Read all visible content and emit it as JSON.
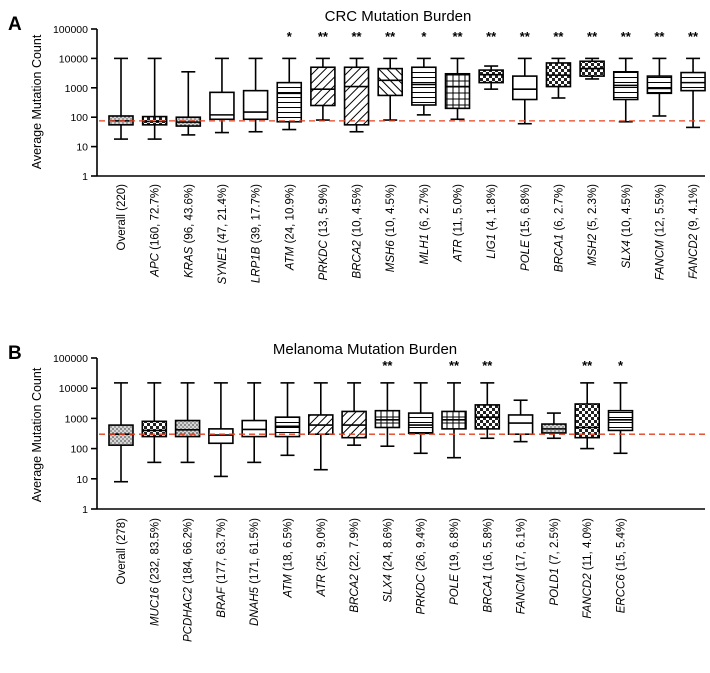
{
  "chart_data": [
    {
      "type": "box",
      "panel_label": "A",
      "title": "CRC Mutation Burden",
      "ylabel": "Average Mutation Count",
      "yscale": "log",
      "ylim": [
        1,
        100000
      ],
      "yticks": [
        "1",
        "10",
        "100",
        "1000",
        "10000",
        "100000"
      ],
      "threshold": 75,
      "categories": [
        {
          "gene": "Overall",
          "detail": "(220)",
          "italic": false,
          "pattern": "dots",
          "sig": "",
          "stats": {
            "min": 18,
            "q1": 55,
            "median": 75,
            "q3": 110,
            "max": 10000
          }
        },
        {
          "gene": "APC",
          "detail": "(160, 72.7%)",
          "italic": true,
          "pattern": "checker",
          "sig": "",
          "stats": {
            "min": 18,
            "q1": 55,
            "median": 72,
            "q3": 105,
            "max": 10000
          }
        },
        {
          "gene": "KRAS",
          "detail": "(96, 43.6%)",
          "italic": true,
          "pattern": "dots",
          "sig": "",
          "stats": {
            "min": 25,
            "q1": 50,
            "median": 68,
            "q3": 100,
            "max": 3500
          }
        },
        {
          "gene": "SYNE1",
          "detail": "(47, 21.4%)",
          "italic": true,
          "pattern": "none",
          "sig": "",
          "stats": {
            "min": 30,
            "q1": 85,
            "median": 120,
            "q3": 700,
            "max": 10000
          }
        },
        {
          "gene": "LRP1B",
          "detail": "(39, 17.7%)",
          "italic": true,
          "pattern": "none",
          "sig": "",
          "stats": {
            "min": 32,
            "q1": 85,
            "median": 150,
            "q3": 800,
            "max": 10000
          }
        },
        {
          "gene": "ATM",
          "detail": "(24, 10.9%)",
          "italic": true,
          "pattern": "hlines",
          "sig": "*",
          "stats": {
            "min": 38,
            "q1": 70,
            "median": 650,
            "q3": 1500,
            "max": 10000
          }
        },
        {
          "gene": "PRKDC",
          "detail": "(13, 5.9%)",
          "italic": true,
          "pattern": "diag-up",
          "sig": "**",
          "stats": {
            "min": 80,
            "q1": 250,
            "median": 900,
            "q3": 5000,
            "max": 10000
          }
        },
        {
          "gene": "BRCA2",
          "detail": "(10, 4.5%)",
          "italic": true,
          "pattern": "diag-up",
          "sig": "**",
          "stats": {
            "min": 32,
            "q1": 55,
            "median": 1100,
            "q3": 5000,
            "max": 10000
          }
        },
        {
          "gene": "MSH6",
          "detail": "(10, 4.5%)",
          "italic": true,
          "pattern": "diag-down",
          "sig": "**",
          "stats": {
            "min": 80,
            "q1": 550,
            "median": 1800,
            "q3": 4500,
            "max": 10000
          }
        },
        {
          "gene": "MLH1",
          "detail": "(6, 2.7%)",
          "italic": true,
          "pattern": "hlines",
          "sig": "*",
          "stats": {
            "min": 120,
            "q1": 260,
            "median": 1300,
            "q3": 5000,
            "max": 10000
          }
        },
        {
          "gene": "ATR",
          "detail": "(11, 5.0%)",
          "italic": true,
          "pattern": "grid",
          "sig": "**",
          "stats": {
            "min": 85,
            "q1": 200,
            "median": 1100,
            "q3": 3000,
            "max": 10000
          }
        },
        {
          "gene": "LIG1",
          "detail": "(4, 1.8%)",
          "italic": true,
          "pattern": "checker",
          "sig": "**",
          "stats": {
            "min": 900,
            "q1": 1500,
            "median": 2800,
            "q3": 4000,
            "max": 5500
          }
        },
        {
          "gene": "POLE",
          "detail": "(15, 6.8%)",
          "italic": true,
          "pattern": "none",
          "sig": "**",
          "stats": {
            "min": 60,
            "q1": 400,
            "median": 900,
            "q3": 2500,
            "max": 10000
          }
        },
        {
          "gene": "BRCA1",
          "detail": "(6, 2.7%)",
          "italic": true,
          "pattern": "checker",
          "sig": "**",
          "stats": {
            "min": 450,
            "q1": 1100,
            "median": 2700,
            "q3": 7000,
            "max": 10000
          }
        },
        {
          "gene": "MSH2",
          "detail": "(5, 2.3%)",
          "italic": true,
          "pattern": "checker",
          "sig": "**",
          "stats": {
            "min": 2000,
            "q1": 2500,
            "median": 4500,
            "q3": 8000,
            "max": 10000
          }
        },
        {
          "gene": "SLX4",
          "detail": "(10, 4.5%)",
          "italic": true,
          "pattern": "hlines",
          "sig": "**",
          "stats": {
            "min": 70,
            "q1": 400,
            "median": 1200,
            "q3": 3500,
            "max": 10000
          }
        },
        {
          "gene": "FANCM",
          "detail": "(12, 5.5%)",
          "italic": true,
          "pattern": "hlines",
          "sig": "**",
          "stats": {
            "min": 110,
            "q1": 650,
            "median": 950,
            "q3": 2500,
            "max": 10000
          }
        },
        {
          "gene": "FANCD2",
          "detail": "(9, 4.1%)",
          "italic": true,
          "pattern": "hlines",
          "sig": "**",
          "stats": {
            "min": 45,
            "q1": 800,
            "median": 1500,
            "q3": 3300,
            "max": 10000
          }
        }
      ]
    },
    {
      "type": "box",
      "panel_label": "B",
      "title": "Melanoma Mutation Burden",
      "ylabel": "Average Mutation Count",
      "yscale": "log",
      "ylim": [
        1,
        100000
      ],
      "yticks": [
        "1",
        "10",
        "100",
        "1000",
        "10000",
        "100000"
      ],
      "threshold": 300,
      "categories": [
        {
          "gene": "Overall",
          "detail": "(278)",
          "italic": false,
          "pattern": "dots",
          "sig": "",
          "stats": {
            "min": 8,
            "q1": 130,
            "median": 300,
            "q3": 600,
            "max": 15000
          }
        },
        {
          "gene": "MUC16",
          "detail": "(232, 83.5%)",
          "italic": true,
          "pattern": "checker",
          "sig": "",
          "stats": {
            "min": 35,
            "q1": 250,
            "median": 400,
            "q3": 800,
            "max": 15000
          }
        },
        {
          "gene": "PCDHAC2",
          "detail": "(184, 66.2%)",
          "italic": true,
          "pattern": "dots",
          "sig": "",
          "stats": {
            "min": 35,
            "q1": 250,
            "median": 420,
            "q3": 850,
            "max": 15000
          }
        },
        {
          "gene": "BRAF",
          "detail": "(177, 63.7%)",
          "italic": true,
          "pattern": "none",
          "sig": "",
          "stats": {
            "min": 12,
            "q1": 150,
            "median": 280,
            "q3": 450,
            "max": 15000
          }
        },
        {
          "gene": "DNAH5",
          "detail": "(171, 61.5%)",
          "italic": true,
          "pattern": "none",
          "sig": "",
          "stats": {
            "min": 35,
            "q1": 250,
            "median": 430,
            "q3": 850,
            "max": 15000
          }
        },
        {
          "gene": "ATM",
          "detail": "(18, 6.5%)",
          "italic": true,
          "pattern": "hlines",
          "sig": "",
          "stats": {
            "min": 60,
            "q1": 250,
            "median": 550,
            "q3": 1100,
            "max": 15000
          }
        },
        {
          "gene": "ATR",
          "detail": "(25, 9.0%)",
          "italic": true,
          "pattern": "diag-up",
          "sig": "",
          "stats": {
            "min": 20,
            "q1": 300,
            "median": 600,
            "q3": 1300,
            "max": 15000
          }
        },
        {
          "gene": "BRCA2",
          "detail": "(22, 7.9%)",
          "italic": true,
          "pattern": "diag-up",
          "sig": "",
          "stats": {
            "min": 130,
            "q1": 230,
            "median": 600,
            "q3": 1700,
            "max": 15000
          }
        },
        {
          "gene": "SLX4",
          "detail": "(24, 8.6%)",
          "italic": true,
          "pattern": "grid",
          "sig": "**",
          "stats": {
            "min": 120,
            "q1": 500,
            "median": 900,
            "q3": 1800,
            "max": 15000
          }
        },
        {
          "gene": "PRKDC",
          "detail": "(26, 9.4%)",
          "italic": true,
          "pattern": "hlines",
          "sig": "",
          "stats": {
            "min": 70,
            "q1": 320,
            "median": 600,
            "q3": 1500,
            "max": 15000
          }
        },
        {
          "gene": "POLE",
          "detail": "(19, 6.8%)",
          "italic": true,
          "pattern": "grid",
          "sig": "**",
          "stats": {
            "min": 50,
            "q1": 450,
            "median": 900,
            "q3": 1700,
            "max": 15000
          }
        },
        {
          "gene": "BRCA1",
          "detail": "(16, 5.8%)",
          "italic": true,
          "pattern": "checker",
          "sig": "**",
          "stats": {
            "min": 220,
            "q1": 450,
            "median": 1100,
            "q3": 2800,
            "max": 15000
          }
        },
        {
          "gene": "FANCM",
          "detail": "(17, 6.1%)",
          "italic": true,
          "pattern": "none",
          "sig": "",
          "stats": {
            "min": 170,
            "q1": 300,
            "median": 700,
            "q3": 1300,
            "max": 4000
          }
        },
        {
          "gene": "POLD1",
          "detail": "(7, 2.5%)",
          "italic": true,
          "pattern": "dots",
          "sig": "",
          "stats": {
            "min": 220,
            "q1": 330,
            "median": 450,
            "q3": 650,
            "max": 1500
          }
        },
        {
          "gene": "FANCD2",
          "detail": "(11, 4.0%)",
          "italic": true,
          "pattern": "checker",
          "sig": "**",
          "stats": {
            "min": 100,
            "q1": 230,
            "median": 500,
            "q3": 3000,
            "max": 15000
          }
        },
        {
          "gene": "ERCC6",
          "detail": "(15, 5.4%)",
          "italic": true,
          "pattern": "hlines",
          "sig": "*",
          "stats": {
            "min": 70,
            "q1": 400,
            "median": 900,
            "q3": 1800,
            "max": 15000
          }
        }
      ]
    }
  ]
}
